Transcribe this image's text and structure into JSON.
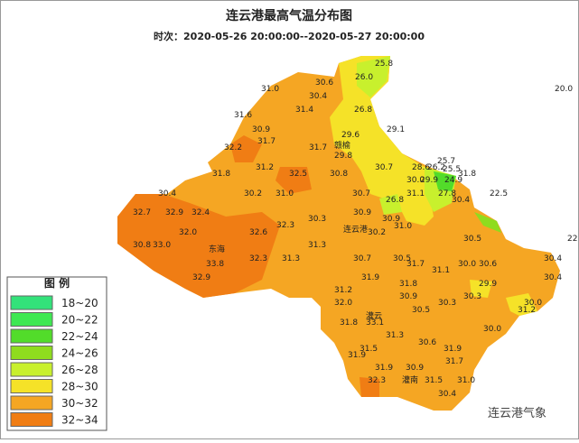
{
  "header": {
    "title": "连云港最高气温分布图",
    "subtitle": "时次：2020-05-26 20:00:00--2020-05-27 20:00:00"
  },
  "places": [
    "赣榆",
    "连云港",
    "东海",
    "灌云",
    "灌南"
  ],
  "station_values": [
    "25.8",
    "26.0",
    "30.6",
    "31.0",
    "30.4",
    "20.0",
    "31.4",
    "26.8",
    "31.6",
    "30.9",
    "29.1",
    "29.6",
    "32.2",
    "31.7",
    "31.7",
    "29.8",
    "25.7",
    "28.6",
    "26.2",
    "25.5",
    "31.8",
    "30.7",
    "31.2",
    "32.5",
    "30.8",
    "31.8",
    "30.0",
    "29.9",
    "24.9",
    "30.4",
    "30.2",
    "31.0",
    "30.7",
    "26.8",
    "31.1",
    "27.8",
    "30.4",
    "22.5",
    "32.7",
    "32.9",
    "32.4",
    "30.9",
    "30.3",
    "30.9",
    "32.3",
    "30.2",
    "31.0",
    "32.0",
    "32.6",
    "30.5",
    "30.8",
    "33.0",
    "31.3",
    "22",
    "33.8",
    "32.3",
    "31.3",
    "30.7",
    "30.5",
    "31.7",
    "30.0",
    "30.6",
    "30.4",
    "31.1",
    "32.9",
    "31.9",
    "31.8",
    "30.4",
    "29.9",
    "31.2",
    "30.9",
    "30.3",
    "32.0",
    "30.3",
    "30.0",
    "30.5",
    "31.2",
    "31.8",
    "33.1",
    "30.0",
    "31.3",
    "30.6",
    "31.5",
    "31.9",
    "31.9",
    "31.7",
    "31.9",
    "30.9",
    "32.3",
    "31.5",
    "31.0",
    "30.4"
  ],
  "legend": {
    "title": "图 例",
    "items": [
      {
        "label": "18~20",
        "color": "#33e27a"
      },
      {
        "label": "20~22",
        "color": "#3ee852"
      },
      {
        "label": "22~24",
        "color": "#52dc2a"
      },
      {
        "label": "24~26",
        "color": "#8fdc1e"
      },
      {
        "label": "26~28",
        "color": "#c8f02d"
      },
      {
        "label": "28~30",
        "color": "#f5e228"
      },
      {
        "label": "30~32",
        "color": "#f5a623"
      },
      {
        "label": "32~34",
        "color": "#f07d14"
      }
    ]
  },
  "watermark": "连云港气象"
}
